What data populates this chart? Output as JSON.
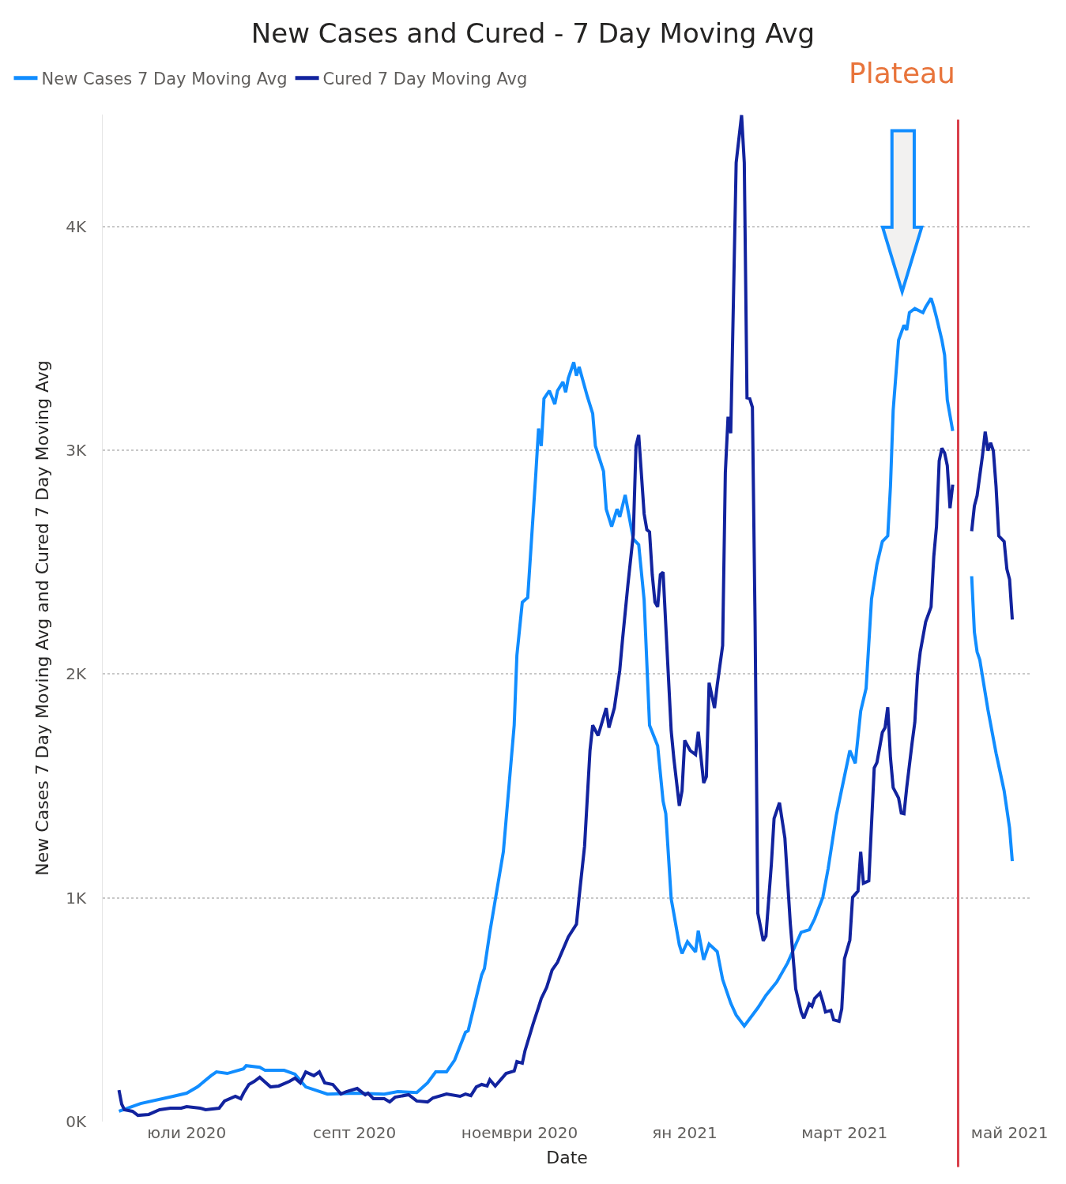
{
  "chart_data": {
    "type": "line",
    "title": "New Cases and Cured - 7 Day Moving Avg",
    "xlabel": "Date",
    "ylabel": "New Cases 7 Day Moving Avg and Cured 7 Day Moving Avg",
    "xlim": [
      "2020-05-31",
      "2021-05-09"
    ],
    "xticks": [
      {
        "value": "2020-07-01",
        "label": "юли 2020"
      },
      {
        "value": "2020-09-01",
        "label": "септ 2020"
      },
      {
        "value": "2020-11-01",
        "label": "ноември 2020"
      },
      {
        "value": "2021-01-01",
        "label": "ян 2021"
      },
      {
        "value": "2021-03-01",
        "label": "март 2021"
      },
      {
        "value": "2021-05-01",
        "label": "май 2021"
      }
    ],
    "ylim": [
      0,
      4500
    ],
    "yticks": [
      {
        "value": 0,
        "label": "0K"
      },
      {
        "value": 1000,
        "label": "1K"
      },
      {
        "value": 2000,
        "label": "2K"
      },
      {
        "value": 3000,
        "label": "3K"
      },
      {
        "value": 4000,
        "label": "4K"
      }
    ],
    "grid": "y",
    "legend": "top left",
    "marker": "none",
    "line_style": "solid",
    "ref_lines": [
      {
        "axis": "x",
        "value": "2021-04-12",
        "color": "#d9404b"
      }
    ],
    "annotations": [
      "Plateau"
    ],
    "series": [
      {
        "name": "New Cases 7 Day Moving Avg",
        "color": "#118dff",
        "x": [
          "2020-06-06",
          "2020-06-14",
          "2020-06-26",
          "2020-07-01",
          "2020-07-05",
          "2020-07-10",
          "2020-07-12",
          "2020-07-16",
          "2020-07-22",
          "2020-07-23",
          "2020-07-28",
          "2020-07-30",
          "2020-08-06",
          "2020-08-10",
          "2020-08-14",
          "2020-08-22",
          "2020-09-01",
          "2020-09-12",
          "2020-09-17",
          "2020-09-24",
          "2020-09-28",
          "2020-10-01",
          "2020-10-05",
          "2020-10-08",
          "2020-10-12",
          "2020-10-13",
          "2020-10-18",
          "2020-10-19",
          "2020-10-21",
          "2020-10-26",
          "2020-10-30",
          "2020-10-31",
          "2020-11-02",
          "2020-11-04",
          "2020-11-07",
          "2020-11-08",
          "2020-11-09",
          "2020-11-10",
          "2020-11-12",
          "2020-11-14",
          "2020-11-15",
          "2020-11-17",
          "2020-11-18",
          "2020-11-19",
          "2020-11-21",
          "2020-11-22",
          "2020-11-23",
          "2020-11-26",
          "2020-11-28",
          "2020-11-29",
          "2020-12-02",
          "2020-12-03",
          "2020-12-05",
          "2020-12-07",
          "2020-12-08",
          "2020-12-10",
          "2020-12-13",
          "2020-12-15",
          "2020-12-17",
          "2020-12-19",
          "2020-12-22",
          "2020-12-24",
          "2020-12-25",
          "2020-12-27",
          "2020-12-28",
          "2020-12-30",
          "2020-12-31",
          "2021-01-02",
          "2021-01-05",
          "2021-01-06",
          "2021-01-08",
          "2021-01-10",
          "2021-01-13",
          "2021-01-15",
          "2021-01-18",
          "2021-01-20",
          "2021-01-23",
          "2021-01-28",
          "2021-01-31",
          "2021-02-04",
          "2021-02-08",
          "2021-02-13",
          "2021-02-16",
          "2021-02-18",
          "2021-02-21",
          "2021-02-23",
          "2021-02-26",
          "2021-02-28",
          "2021-03-03",
          "2021-03-05",
          "2021-03-07",
          "2021-03-09",
          "2021-03-11",
          "2021-03-13",
          "2021-03-15",
          "2021-03-17",
          "2021-03-18",
          "2021-03-19",
          "2021-03-21",
          "2021-03-23",
          "2021-03-24",
          "2021-03-25",
          "2021-03-27",
          "2021-03-30",
          "2021-03-31",
          "2021-04-02",
          "2021-04-03",
          "2021-04-04",
          "2021-04-06",
          "2021-04-07",
          "2021-04-08",
          "2021-04-10",
          "2021-04-14",
          "2021-04-17",
          "2021-04-18",
          "2021-04-19",
          "2021-04-20",
          "2021-04-23",
          "2021-04-26",
          "2021-04-27",
          "2021-04-29",
          "2021-05-01",
          "2021-05-02"
        ],
        "values": [
          46,
          81,
          113,
          127,
          155,
          205,
          222,
          215,
          236,
          250,
          243,
          229,
          229,
          212,
          155,
          123,
          127,
          123,
          134,
          130,
          173,
          222,
          222,
          275,
          399,
          406,
          656,
          684,
          846,
          1206,
          1771,
          2084,
          2321,
          2342,
          2896,
          3097,
          3019,
          3231,
          3266,
          3206,
          3266,
          3305,
          3259,
          3322,
          3393,
          3333,
          3372,
          3241,
          3164,
          3019,
          2906,
          2737,
          2659,
          2737,
          2702,
          2800,
          2603,
          2578,
          2331,
          1771,
          1679,
          1432,
          1376,
          995,
          928,
          790,
          751,
          804,
          758,
          853,
          723,
          793,
          760,
          635,
          529,
          476,
          427,
          508,
          564,
          624,
          709,
          846,
          857,
          906,
          1002,
          1132,
          1368,
          1485,
          1658,
          1601,
          1834,
          1936,
          2335,
          2490,
          2592,
          2617,
          2839,
          3178,
          3492,
          3559,
          3537,
          3615,
          3633,
          3615,
          3640,
          3679,
          3640,
          3594,
          3492,
          3425,
          3224,
          3086,
          null,
          2437,
          2187,
          2099,
          2063,
          1841,
          1647,
          1591,
          1478,
          1312,
          1164
        ]
      },
      {
        "name": "Cured 7 Day Moving Avg",
        "color": "#12239e",
        "x": [
          "2020-06-06",
          "2020-06-07",
          "2020-06-08",
          "2020-06-11",
          "2020-06-13",
          "2020-06-17",
          "2020-06-21",
          "2020-06-25",
          "2020-06-29",
          "2020-07-01",
          "2020-07-06",
          "2020-07-08",
          "2020-07-13",
          "2020-07-15",
          "2020-07-19",
          "2020-07-21",
          "2020-07-22",
          "2020-07-24",
          "2020-07-26",
          "2020-07-28",
          "2020-07-29",
          "2020-08-01",
          "2020-08-04",
          "2020-08-08",
          "2020-08-10",
          "2020-08-12",
          "2020-08-14",
          "2020-08-17",
          "2020-08-19",
          "2020-08-21",
          "2020-08-24",
          "2020-08-27",
          "2020-08-29",
          "2020-09-02",
          "2020-09-05",
          "2020-09-06",
          "2020-09-08",
          "2020-09-12",
          "2020-09-14",
          "2020-09-16",
          "2020-09-21",
          "2020-09-24",
          "2020-09-28",
          "2020-09-30",
          "2020-10-05",
          "2020-10-10",
          "2020-10-12",
          "2020-10-14",
          "2020-10-16",
          "2020-10-18",
          "2020-10-20",
          "2020-10-21",
          "2020-10-23",
          "2020-10-27",
          "2020-10-30",
          "2020-10-31",
          "2020-11-02",
          "2020-11-03",
          "2020-11-06",
          "2020-11-08",
          "2020-11-09",
          "2020-11-11",
          "2020-11-13",
          "2020-11-15",
          "2020-11-19",
          "2020-11-22",
          "2020-11-23",
          "2020-11-25",
          "2020-11-27",
          "2020-11-28",
          "2020-11-30",
          "2020-12-03",
          "2020-12-04",
          "2020-12-06",
          "2020-12-08",
          "2020-12-09",
          "2020-12-11",
          "2020-12-13",
          "2020-12-14",
          "2020-12-15",
          "2020-12-17",
          "2020-12-18",
          "2020-12-19",
          "2020-12-20",
          "2020-12-21",
          "2020-12-22",
          "2020-12-23",
          "2020-12-24",
          "2020-12-25",
          "2020-12-27",
          "2020-12-28",
          "2020-12-30",
          "2020-12-31",
          "2021-01-01",
          "2021-01-03",
          "2021-01-05",
          "2021-01-06",
          "2021-01-08",
          "2021-01-09",
          "2021-01-10",
          "2021-01-12",
          "2021-01-13",
          "2021-01-15",
          "2021-01-16",
          "2021-01-17",
          "2021-01-18",
          "2021-01-19",
          "2021-01-20",
          "2021-01-22",
          "2021-01-23",
          "2021-01-24",
          "2021-01-25",
          "2021-01-26",
          "2021-01-27",
          "2021-01-28",
          "2021-01-30",
          "2021-01-31",
          "2021-02-02",
          "2021-02-03",
          "2021-02-05",
          "2021-02-07",
          "2021-02-09",
          "2021-02-11",
          "2021-02-13",
          "2021-02-14",
          "2021-02-16",
          "2021-02-17",
          "2021-02-18",
          "2021-02-20",
          "2021-02-21",
          "2021-02-22",
          "2021-02-24",
          "2021-02-25",
          "2021-02-27",
          "2021-02-28",
          "2021-03-01",
          "2021-03-03",
          "2021-03-04",
          "2021-03-06",
          "2021-03-07",
          "2021-03-08",
          "2021-03-10",
          "2021-03-12",
          "2021-03-13",
          "2021-03-15",
          "2021-03-16",
          "2021-03-17",
          "2021-03-18",
          "2021-03-19",
          "2021-03-21",
          "2021-03-22",
          "2021-03-23",
          "2021-03-24",
          "2021-03-26",
          "2021-03-27",
          "2021-03-28",
          "2021-03-29",
          "2021-03-31",
          "2021-04-02",
          "2021-04-03",
          "2021-04-04",
          "2021-04-05",
          "2021-04-06",
          "2021-04-07",
          "2021-04-08",
          "2021-04-09",
          "2021-04-10",
          "2021-04-14",
          "2021-04-17",
          "2021-04-18",
          "2021-04-19",
          "2021-04-21",
          "2021-04-22",
          "2021-04-23",
          "2021-04-24",
          "2021-04-25",
          "2021-04-26",
          "2021-04-27",
          "2021-04-29",
          "2021-04-30",
          "2021-05-01",
          "2021-05-02"
        ],
        "values": [
          141,
          78,
          53,
          46,
          28,
          32,
          53,
          60,
          60,
          67,
          60,
          53,
          60,
          92,
          113,
          102,
          127,
          166,
          180,
          198,
          187,
          155,
          159,
          180,
          194,
          173,
          222,
          205,
          222,
          173,
          166,
          123,
          134,
          148,
          120,
          127,
          102,
          102,
          88,
          109,
          120,
          92,
          88,
          106,
          123,
          113,
          123,
          116,
          155,
          166,
          159,
          187,
          159,
          215,
          226,
          268,
          261,
          317,
          437,
          511,
          550,
          600,
          677,
          712,
          825,
          882,
          1005,
          1231,
          1658,
          1771,
          1725,
          1848,
          1760,
          1848,
          2017,
          2151,
          2398,
          2624,
          3019,
          3068,
          2716,
          2645,
          2635,
          2444,
          2321,
          2300,
          2444,
          2455,
          2218,
          1746,
          1620,
          1411,
          1478,
          1703,
          1658,
          1640,
          1742,
          1513,
          1541,
          1961,
          1848,
          1950,
          2127,
          2899,
          3150,
          3076,
          3675,
          4285,
          4497,
          4285,
          3234,
          3231,
          3192,
          2215,
          931,
          808,
          829,
          1150,
          1354,
          1425,
          1266,
          885,
          593,
          490,
          462,
          526,
          515,
          550,
          575,
          536,
          490,
          497,
          455,
          448,
          504,
          727,
          811,
          1002,
          1030,
          1206,
          1065,
          1076,
          1580,
          1605,
          1739,
          1760,
          1852,
          1626,
          1492,
          1446,
          1379,
          1376,
          1492,
          1693,
          1785,
          1996,
          2099,
          2233,
          2300,
          2525,
          2659,
          2952,
          3009,
          2988,
          2931,
          2741,
          2846,
          null,
          2638,
          2751,
          2797,
          2977,
          3083,
          2998,
          3033,
          2998,
          2839,
          2617,
          2592,
          2469,
          2423,
          2243
        ]
      }
    ]
  }
}
